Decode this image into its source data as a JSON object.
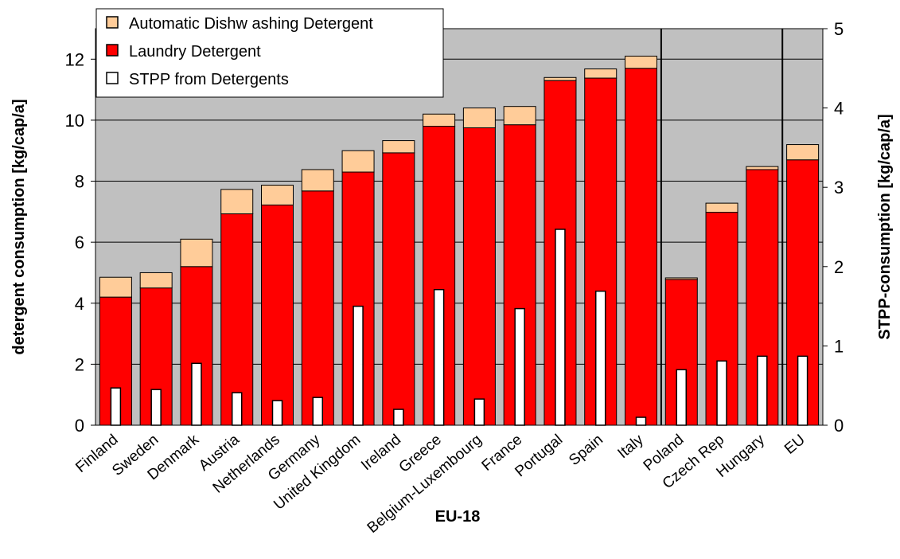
{
  "chart_data": {
    "type": "bar",
    "stacked": true,
    "categories": [
      "Finland",
      "Sweden",
      "Denmark",
      "Austria",
      "Netherlands",
      "Germany",
      "United Kingdom",
      "Ireland",
      "Greece",
      "Belgium-Luxembourg",
      "France",
      "Portugal",
      "Spain",
      "Italy",
      "Poland",
      "Czech Rep",
      "Hungary",
      "EU"
    ],
    "series": [
      {
        "name": "Automatic Dishw ashing Detergent",
        "axis": "left",
        "color": "#ffcc99",
        "values": [
          0.65,
          0.5,
          0.9,
          0.8,
          0.65,
          0.7,
          0.7,
          0.4,
          0.4,
          0.65,
          0.6,
          0.1,
          0.3,
          0.4,
          0.05,
          0.3,
          0.1,
          0.5
        ]
      },
      {
        "name": "Laundry Detergent",
        "axis": "left",
        "color": "#ff0000",
        "values": [
          4.2,
          4.5,
          5.2,
          6.93,
          7.22,
          7.68,
          8.3,
          8.93,
          9.8,
          9.75,
          9.85,
          11.3,
          11.38,
          11.7,
          4.78,
          6.98,
          8.38,
          8.7
        ]
      },
      {
        "name": "STPP from Detergents",
        "axis": "right",
        "color": "#ffffff",
        "values": [
          0.47,
          0.45,
          0.78,
          0.41,
          0.31,
          0.35,
          1.5,
          0.2,
          1.71,
          0.33,
          1.47,
          2.47,
          1.69,
          0.1,
          0.7,
          0.81,
          0.87,
          0.87
        ]
      }
    ],
    "xlabel": "EU-18",
    "ylabel": "detergent consumption [kg/cap/a]",
    "y2label": "STPP-consumption [kg/cap/a]",
    "ylim": [
      0,
      13
    ],
    "yticks": [
      0,
      2,
      4,
      6,
      8,
      10,
      12
    ],
    "y2lim": [
      0,
      5
    ],
    "y2ticks": [
      0,
      1,
      2,
      3,
      4,
      5
    ],
    "separators_after": [
      "Italy",
      "Hungary"
    ],
    "plot_background": "#c0c0c0",
    "legend_position": "top-left",
    "grid": "horizontal"
  }
}
